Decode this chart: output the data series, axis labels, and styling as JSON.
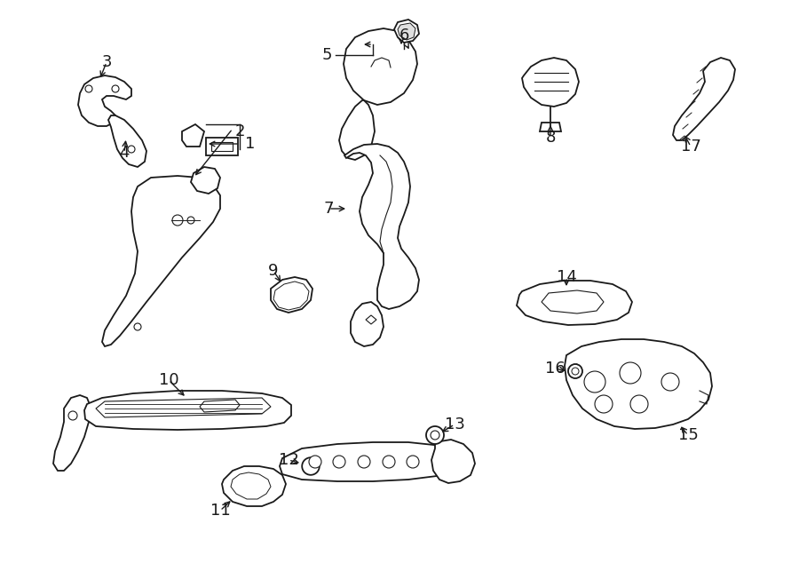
{
  "bg_color": "#ffffff",
  "line_color": "#1a1a1a",
  "lw": 1.3,
  "fig_width": 9.0,
  "fig_height": 6.61,
  "dpi": 100
}
